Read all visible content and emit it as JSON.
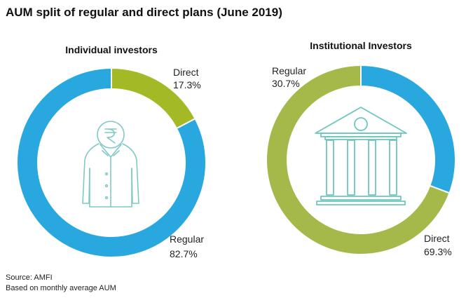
{
  "title": "AUM split of regular and direct plans (June 2019)",
  "colors": {
    "regular": "#29a8e0",
    "direct_individual": "#a4b926",
    "direct_institutional": "#a5b84a",
    "icon_stroke": "#7fc9c4",
    "icon_stroke_alt": "#6ec6bf"
  },
  "icons": {
    "individual": "person-rupee-icon",
    "institutional": "bank-building-icon"
  },
  "chart_data": [
    {
      "type": "pie",
      "title": "Individual investors",
      "slices": [
        {
          "name": "Direct",
          "value": 17.3,
          "label": "17.3%"
        },
        {
          "name": "Regular",
          "value": 82.7,
          "label": "82.7%"
        }
      ]
    },
    {
      "type": "pie",
      "title": "Institutional Investors",
      "slices": [
        {
          "name": "Regular",
          "value": 30.7,
          "label": "30.7%"
        },
        {
          "name": "Direct",
          "value": 69.3,
          "label": "69.3%"
        }
      ]
    }
  ],
  "footnotes": {
    "source": "Source: AMFI",
    "basis": "Based on monthly average AUM"
  }
}
